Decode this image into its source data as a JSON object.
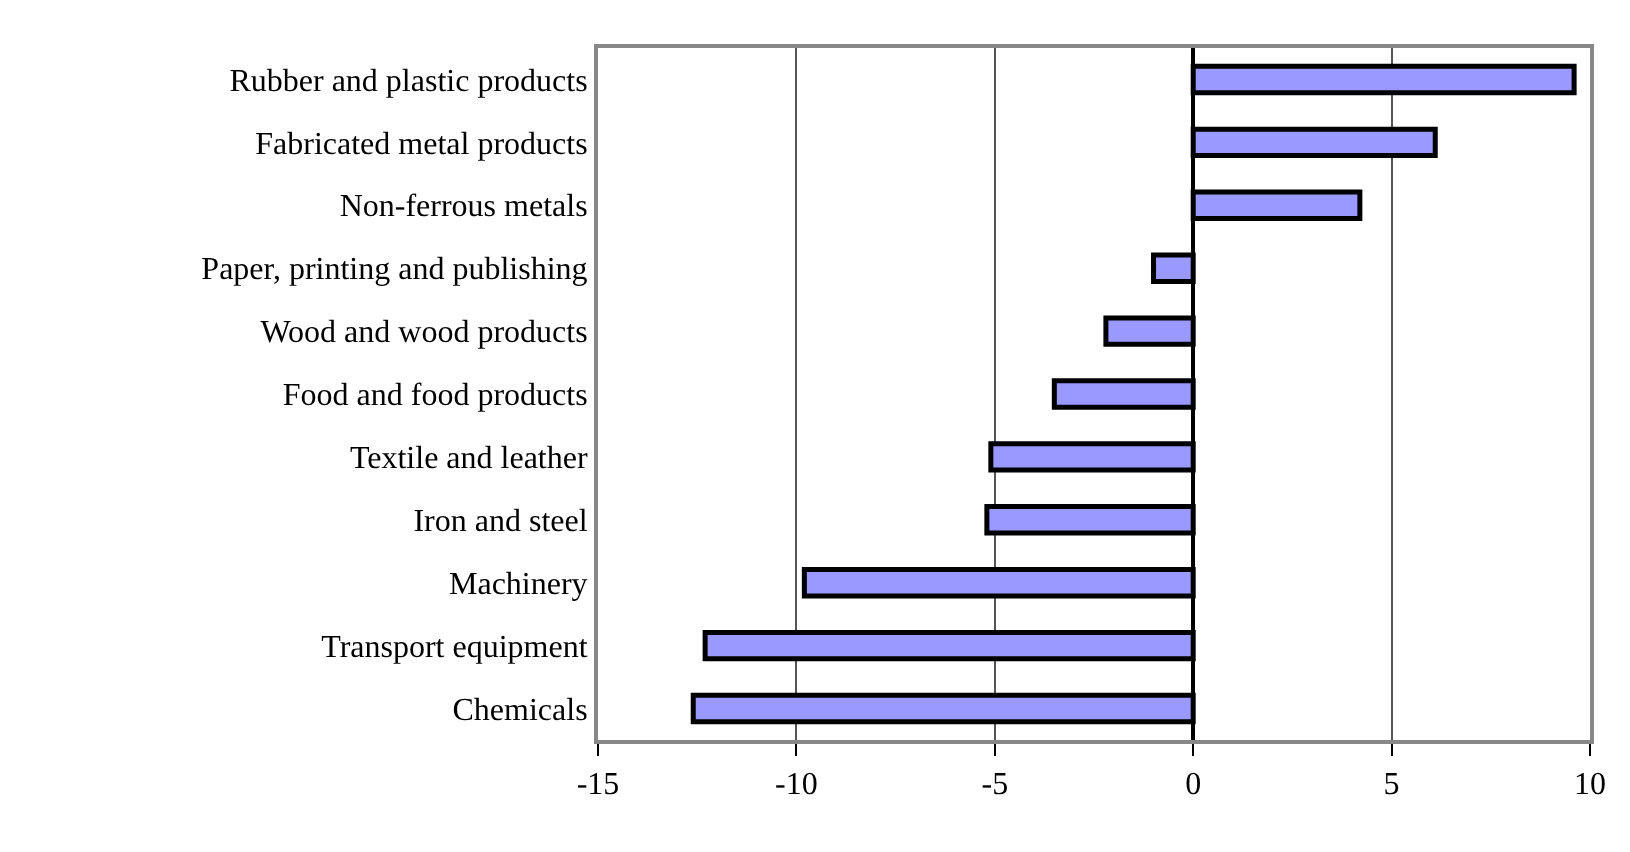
{
  "chart_data": {
    "type": "bar",
    "orientation": "horizontal",
    "categories": [
      "Rubber and plastic products",
      "Fabricated metal products",
      "Non-ferrous metals",
      "Paper, printing and publishing",
      "Wood and wood products",
      "Food and food products",
      "Textile and leather",
      "Iron and steel",
      "Machinery",
      "Transport equipment",
      "Chemicals"
    ],
    "values": [
      9.6,
      6.1,
      4.2,
      -1.0,
      -2.2,
      -3.5,
      -5.1,
      -5.2,
      -9.8,
      -12.3,
      -12.6
    ],
    "color": "#9999ff",
    "xlim": [
      -15,
      10
    ],
    "xticks": [
      -15,
      -10,
      -5,
      0,
      5,
      10
    ],
    "grid": "x",
    "legend": false
  }
}
